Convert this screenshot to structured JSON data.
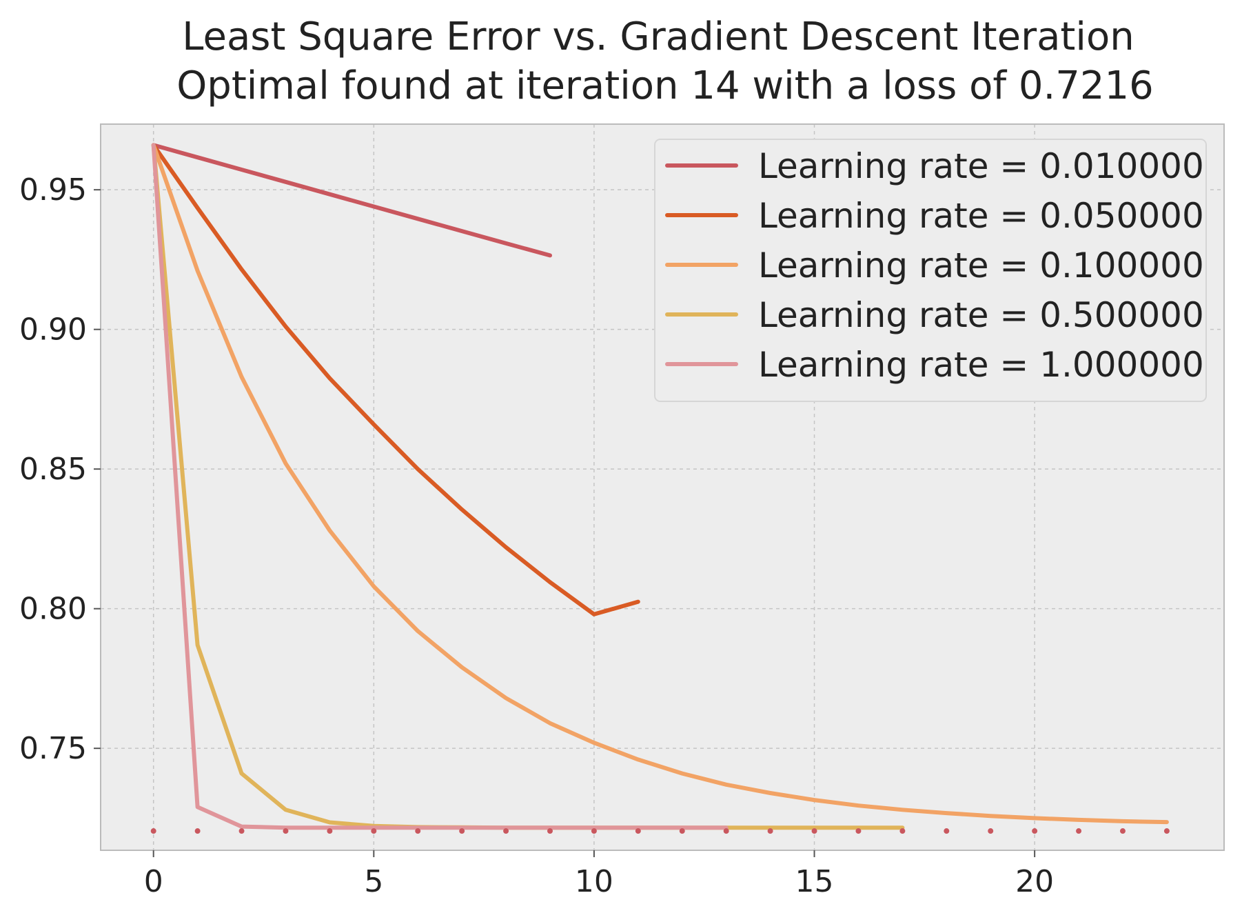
{
  "chart_data": {
    "type": "line",
    "title": "Least Square Error vs. Gradient Descent Iteration",
    "subtitle": "Optimal found at iteration 14 with a loss of 0.7216",
    "xlabel": "",
    "ylabel": "",
    "xlim": [
      -1.2,
      24.3
    ],
    "ylim": [
      0.7135,
      0.9735
    ],
    "x_ticks": [
      0,
      5,
      10,
      15,
      20
    ],
    "y_ticks": [
      0.75,
      0.8,
      0.85,
      0.9,
      0.95
    ],
    "y_tick_labels": [
      "0.75",
      "0.80",
      "0.85",
      "0.90",
      "0.95"
    ],
    "grid": true,
    "legend_position": "top-right",
    "series": [
      {
        "name": "Learning rate = 0.010000",
        "color": "#c9575e",
        "x": [
          0,
          1,
          2,
          3,
          4,
          5,
          6,
          7,
          8,
          9
        ],
        "values": [
          0.966,
          0.9616,
          0.9572,
          0.9528,
          0.9484,
          0.944,
          0.9396,
          0.9352,
          0.9308,
          0.9265
        ]
      },
      {
        "name": "Learning rate = 0.050000",
        "color": "#d95b24",
        "x": [
          0,
          1,
          2,
          3,
          4,
          5,
          6,
          7,
          8,
          9,
          10,
          11
        ],
        "values": [
          0.966,
          0.9435,
          0.9215,
          0.901,
          0.8825,
          0.866,
          0.85,
          0.8355,
          0.822,
          0.8095,
          0.798,
          0.8025
        ]
      },
      {
        "name": "Learning rate = 0.100000",
        "color": "#f2a365",
        "x": [
          0,
          1,
          2,
          3,
          4,
          5,
          6,
          7,
          8,
          9,
          10,
          11,
          12,
          13,
          14,
          15,
          16,
          17,
          18,
          19,
          20,
          21,
          22,
          23
        ],
        "values": [
          0.966,
          0.921,
          0.883,
          0.852,
          0.828,
          0.808,
          0.792,
          0.779,
          0.768,
          0.759,
          0.752,
          0.746,
          0.741,
          0.737,
          0.734,
          0.7315,
          0.7295,
          0.728,
          0.7268,
          0.7258,
          0.725,
          0.7244,
          0.7239,
          0.7236
        ]
      },
      {
        "name": "Learning rate = 0.500000",
        "color": "#e0b45a",
        "x": [
          0,
          1,
          2,
          3,
          4,
          5,
          6,
          7,
          8,
          9,
          10,
          11,
          12,
          13,
          14,
          15,
          16,
          17
        ],
        "values": [
          0.966,
          0.787,
          0.741,
          0.728,
          0.7235,
          0.7222,
          0.7218,
          0.7217,
          0.7216,
          0.7216,
          0.7216,
          0.7216,
          0.7216,
          0.7216,
          0.7216,
          0.7216,
          0.7216,
          0.7216
        ]
      },
      {
        "name": "Learning rate = 1.000000",
        "color": "#e0959a",
        "x": [
          0,
          1,
          2,
          3,
          4,
          5,
          6,
          7,
          8,
          9,
          10,
          11,
          12,
          13
        ],
        "values": [
          0.966,
          0.729,
          0.722,
          0.7216,
          0.7216,
          0.7216,
          0.7216,
          0.7216,
          0.7216,
          0.7216,
          0.7216,
          0.7216,
          0.7216,
          0.7216
        ]
      }
    ],
    "markers": {
      "color": "#c9575e",
      "x": [
        0,
        1,
        2,
        3,
        4,
        5,
        6,
        7,
        8,
        9,
        10,
        11,
        12,
        13,
        14,
        15,
        16,
        17,
        18,
        19,
        20,
        21,
        22,
        23
      ],
      "y": 0.7204
    }
  }
}
